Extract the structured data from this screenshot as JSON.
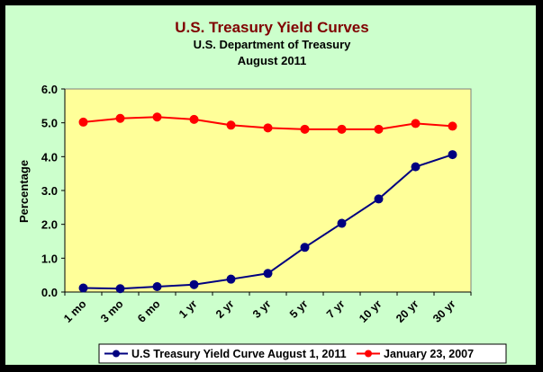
{
  "chart_data": {
    "type": "line",
    "title": "U.S. Treasury Yield Curves",
    "subtitle_1": "U.S. Department of Treasury",
    "subtitle_2": "August 2011",
    "ylabel": "Percentage",
    "xlabel": "",
    "ylim": [
      0,
      6
    ],
    "yticks": [
      "0.0",
      "1.0",
      "2.0",
      "3.0",
      "4.0",
      "5.0",
      "6.0"
    ],
    "categories": [
      "1 mo",
      "3 mo",
      "6 mo",
      "1 yr",
      "2 yr",
      "3 yr",
      "5 yr",
      "7 yr",
      "10 yr",
      "20 yr",
      "30 yr"
    ],
    "grid": false,
    "legend_position": "bottom",
    "series": [
      {
        "name": "U.S Treasury Yield Curve August 1, 2011",
        "color": "#000080",
        "values": [
          0.12,
          0.1,
          0.16,
          0.22,
          0.38,
          0.55,
          1.32,
          2.03,
          2.75,
          3.7,
          4.06
        ]
      },
      {
        "name": "January 23, 2007",
        "color": "#ff0000",
        "values": [
          5.02,
          5.13,
          5.17,
          5.1,
          4.93,
          4.85,
          4.81,
          4.81,
          4.81,
          4.98,
          4.9
        ]
      }
    ],
    "colors": {
      "plot_background": "#ffff99",
      "chart_background": "#ccffcc",
      "title_color": "#800000"
    }
  }
}
